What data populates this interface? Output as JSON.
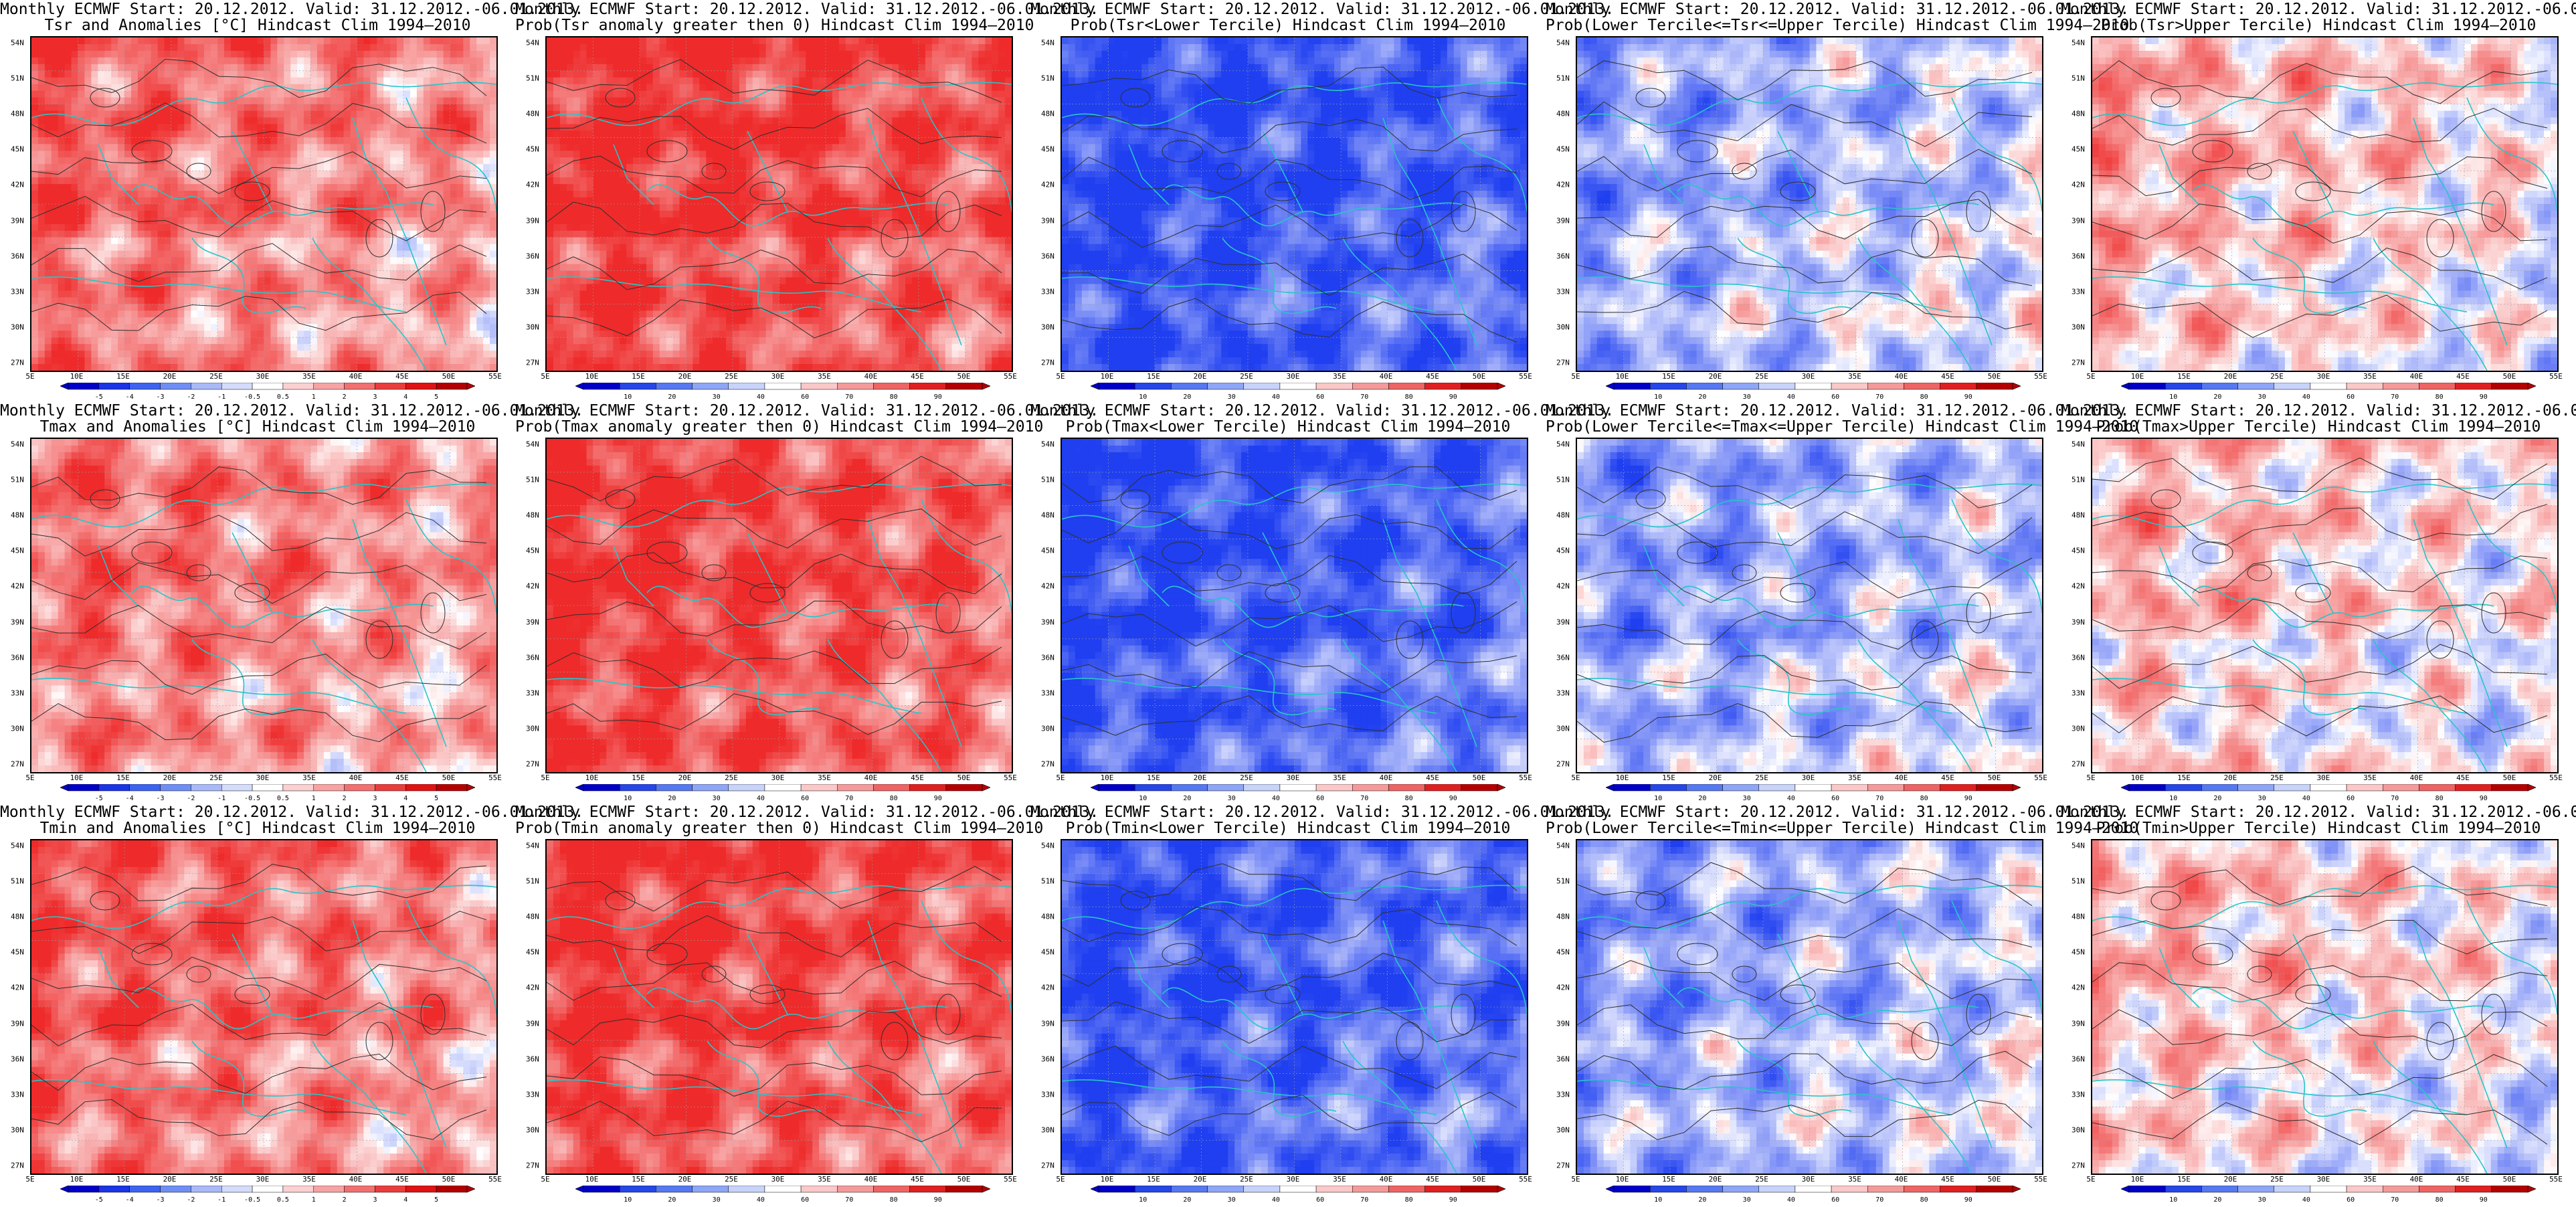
{
  "common": {
    "title_line1": "Monthly ECMWF Start: 20.12.2012. Valid: 31.12.2012.-06.01.2013.",
    "lat_labels": [
      "54N",
      "51N",
      "48N",
      "45N",
      "42N",
      "39N",
      "36N",
      "33N",
      "30N",
      "27N"
    ],
    "lon_labels": [
      "5E",
      "10E",
      "15E",
      "20E",
      "25E",
      "30E",
      "35E",
      "40E",
      "45E",
      "50E",
      "55E"
    ]
  },
  "colorbars": {
    "anomaly": {
      "labels": [
        "-5",
        "-4",
        "-3",
        "-2",
        "-1",
        "-0.5",
        "0.5",
        "1",
        "2",
        "3",
        "4",
        "5"
      ],
      "colors": [
        "#0000c8",
        "#1a34e6",
        "#3c63f0",
        "#6f8ef5",
        "#a9b9f8",
        "#d4dcfb",
        "#ffffff",
        "#fbd0d0",
        "#f7a3a3",
        "#f27070",
        "#eb3c3c",
        "#e01212",
        "#b40000"
      ]
    },
    "probability": {
      "labels": [
        "10",
        "20",
        "30",
        "40",
        "60",
        "70",
        "80",
        "90"
      ],
      "colors": [
        "#0000c8",
        "#2646e8",
        "#5678f0",
        "#8ea6f6",
        "#c8d3fa",
        "#ffffff",
        "#fac8c8",
        "#f49a9a",
        "#ee6464",
        "#e02020",
        "#b40000"
      ]
    }
  },
  "colors": {
    "coastline": "#27c5c9",
    "contour": "#303030",
    "blue": "#1f3ff0",
    "red": "#ee2a2a"
  },
  "panels": [
    {
      "id": "tsr-anomaly",
      "title_line2": "Tsr and Anomalies [°C] Hindcast Clim 1994–2010",
      "colorbar": "anomaly",
      "warm_bias": 0.55
    },
    {
      "id": "tsr-prob-positive",
      "title_line2": "Prob(Tsr anomaly greater then 0) Hindcast Clim 1994–2010",
      "colorbar": "probability",
      "warm_bias": 0.9
    },
    {
      "id": "tsr-prob-lower",
      "title_line2": "Prob(Tsr<Lower Tercile) Hindcast Clim 1994–2010",
      "colorbar": "probability",
      "warm_bias": -0.9
    },
    {
      "id": "tsr-prob-middle",
      "title_line2": "Prob(Lower Tercile<=Tsr<=Upper Tercile) Hindcast Clim 1994–2010",
      "colorbar": "probability",
      "warm_bias": -0.25
    },
    {
      "id": "tsr-prob-upper",
      "title_line2": "Prob(Tsr>Upper Tercile) Hindcast Clim 1994–2010",
      "colorbar": "probability",
      "warm_bias": 0.15
    },
    {
      "id": "tmax-anomaly",
      "title_line2": "Tmax and Anomalies [°C] Hindcast Clim 1994–2010",
      "colorbar": "anomaly",
      "warm_bias": 0.5
    },
    {
      "id": "tmax-prob-positive",
      "title_line2": "Prob(Tmax anomaly greater then 0) Hindcast Clim 1994–2010",
      "colorbar": "probability",
      "warm_bias": 0.85
    },
    {
      "id": "tmax-prob-lower",
      "title_line2": "Prob(Tmax<Lower Tercile) Hindcast Clim 1994–2010",
      "colorbar": "probability",
      "warm_bias": -0.85
    },
    {
      "id": "tmax-prob-middle",
      "title_line2": "Prob(Lower Tercile<=Tmax<=Upper Tercile) Hindcast Clim 1994–2010",
      "colorbar": "probability",
      "warm_bias": -0.3
    },
    {
      "id": "tmax-prob-upper",
      "title_line2": "Prob(Tmax>Upper Tercile) Hindcast Clim 1994–2010",
      "colorbar": "probability",
      "warm_bias": 0.1
    },
    {
      "id": "tmin-anomaly",
      "title_line2": "Tmin and Anomalies [°C] Hindcast Clim 1994–2010",
      "colorbar": "anomaly",
      "warm_bias": 0.6
    },
    {
      "id": "tmin-prob-positive",
      "title_line2": "Prob(Tmin anomaly greater then 0) Hindcast Clim 1994–2010",
      "colorbar": "probability",
      "warm_bias": 0.85
    },
    {
      "id": "tmin-prob-lower",
      "title_line2": "Prob(Tmin<Lower Tercile) Hindcast Clim 1994–2010",
      "colorbar": "probability",
      "warm_bias": -0.8
    },
    {
      "id": "tmin-prob-middle",
      "title_line2": "Prob(Lower Tercile<=Tmin<=Upper Tercile) Hindcast Clim 1994–2010",
      "colorbar": "probability",
      "warm_bias": -0.3
    },
    {
      "id": "tmin-prob-upper",
      "title_line2": "Prob(Tmin>Upper Tercile) Hindcast Clim 1994–2010",
      "colorbar": "probability",
      "warm_bias": 0.1
    }
  ]
}
